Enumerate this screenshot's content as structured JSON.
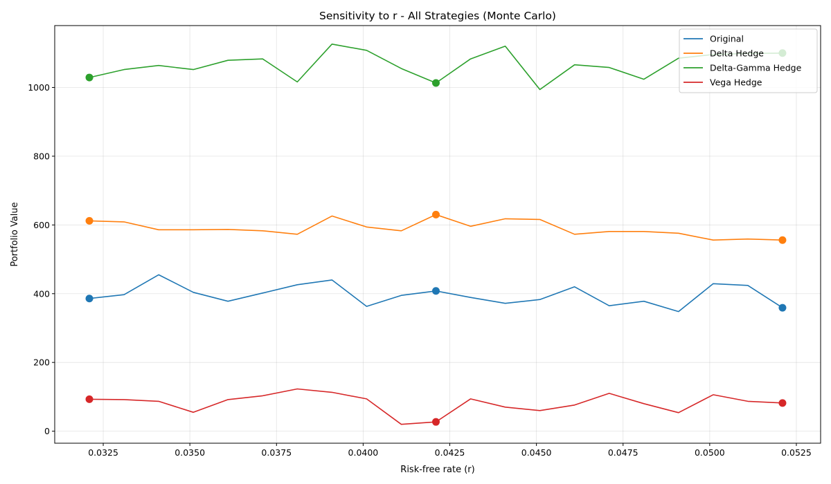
{
  "chart_data": {
    "type": "line",
    "title": "Sensitivity to r - All Strategies (Monte Carlo)",
    "xlabel": "Risk-free rate (r)",
    "ylabel": "Portfolio Value",
    "xlim": [
      0.0311,
      0.0532
    ],
    "ylim": [
      -35,
      1180
    ],
    "xticks": [
      "0.0325",
      "0.0350",
      "0.0375",
      "0.0400",
      "0.0425",
      "0.0450",
      "0.0475",
      "0.0500",
      "0.0525"
    ],
    "yticks": [
      "0",
      "200",
      "400",
      "600",
      "800",
      "1000"
    ],
    "grid": true,
    "legend_position": "top-right",
    "x": [
      0.0321,
      0.0331,
      0.0341,
      0.0351,
      0.0361,
      0.0371,
      0.0381,
      0.0391,
      0.0401,
      0.0411,
      0.0421,
      0.0431,
      0.0441,
      0.0451,
      0.0461,
      0.0471,
      0.0481,
      0.0491,
      0.0501,
      0.0511,
      0.0521
    ],
    "marker_x": [
      0.0321,
      0.0421,
      0.0521
    ],
    "series": [
      {
        "name": "Original",
        "color": "#1f77b4",
        "values": [
          386,
          397,
          455,
          404,
          378,
          402,
          426,
          440,
          363,
          395,
          408,
          389,
          372,
          383,
          420,
          365,
          378,
          348,
          429,
          424,
          359
        ]
      },
      {
        "name": "Delta Hedge",
        "color": "#ff7f0e",
        "values": [
          612,
          609,
          586,
          586,
          587,
          583,
          573,
          626,
          594,
          583,
          630,
          596,
          618,
          616,
          573,
          581,
          581,
          576,
          556,
          559,
          556
        ]
      },
      {
        "name": "Delta-Gamma Hedge",
        "color": "#2ca02c",
        "values": [
          1029,
          1052,
          1064,
          1052,
          1079,
          1083,
          1016,
          1126,
          1108,
          1055,
          1013,
          1083,
          1120,
          994,
          1066,
          1058,
          1024,
          1085,
          1096,
          1099,
          1100
        ]
      },
      {
        "name": "Vega Hedge",
        "color": "#d62728",
        "values": [
          93,
          92,
          87,
          55,
          92,
          103,
          123,
          113,
          94,
          20,
          27,
          94,
          70,
          60,
          76,
          110,
          80,
          54,
          106,
          87,
          82
        ]
      }
    ]
  }
}
